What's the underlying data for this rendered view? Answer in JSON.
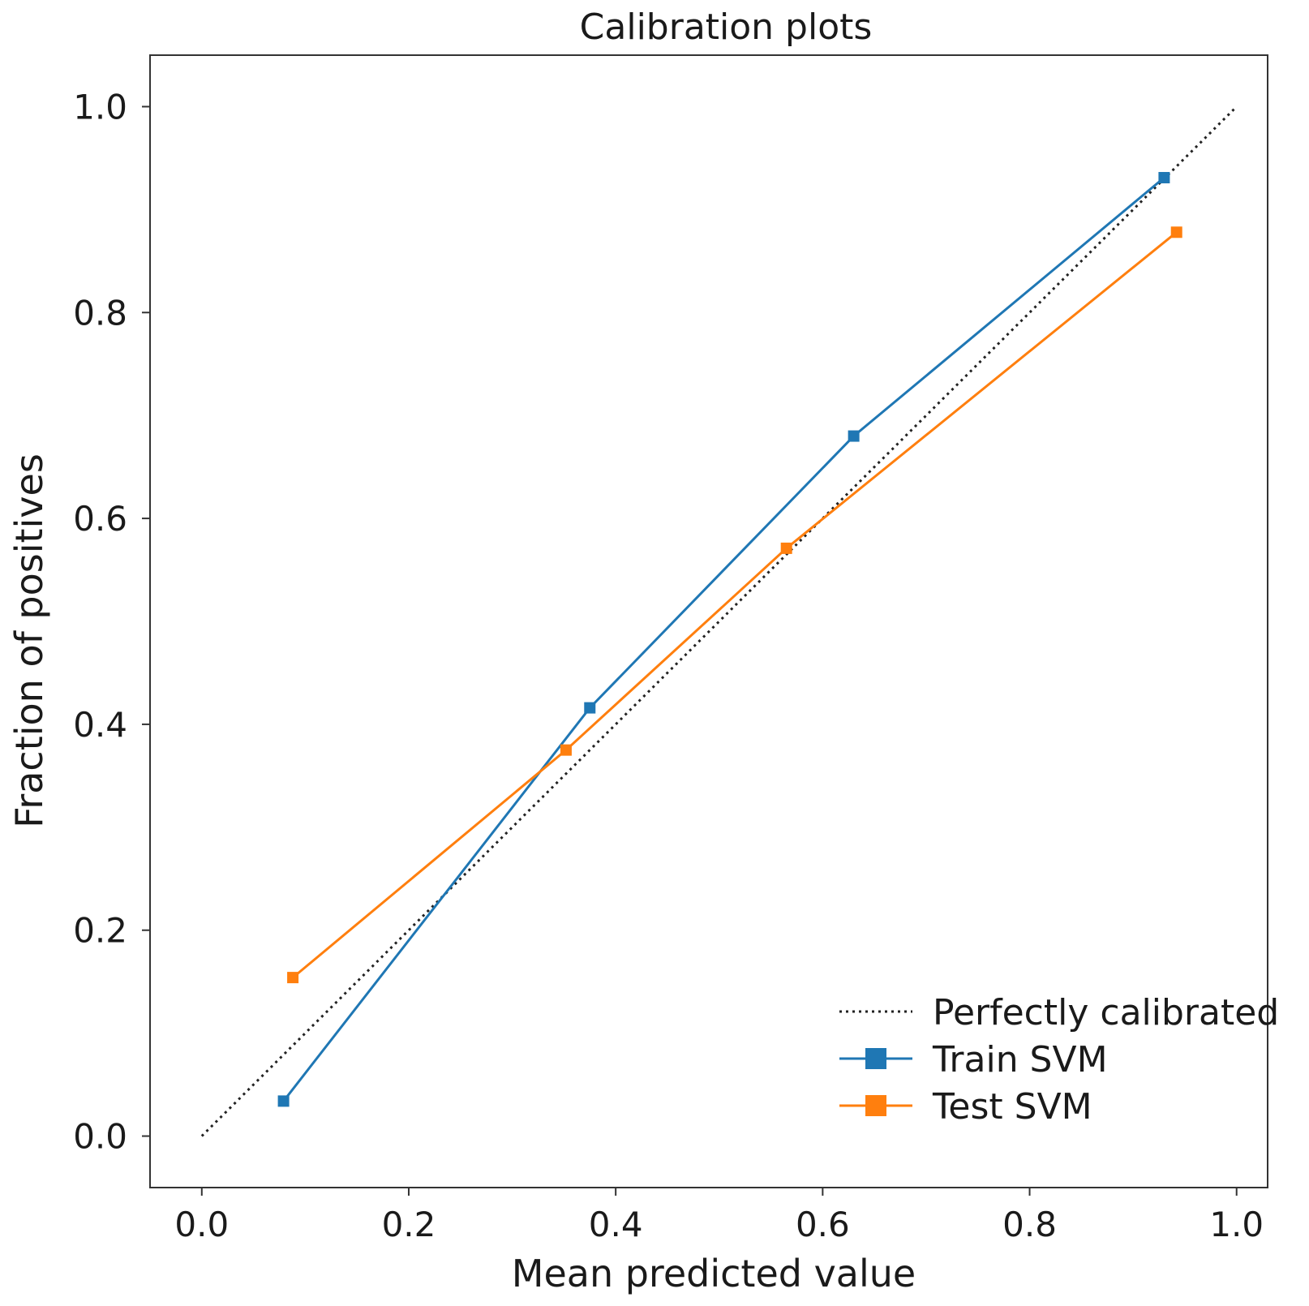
{
  "chart_data": {
    "type": "line",
    "title": "Calibration plots",
    "xlabel": "Mean predicted value",
    "ylabel": "Fraction of positives",
    "xlim": [
      -0.05,
      1.03
    ],
    "ylim": [
      -0.05,
      1.05
    ],
    "xticks": [
      "0.0",
      "0.2",
      "0.4",
      "0.6",
      "0.8",
      "1.0"
    ],
    "yticks": [
      "0.0",
      "0.2",
      "0.4",
      "0.6",
      "0.8",
      "1.0"
    ],
    "grid": false,
    "legend_position": "bottom-right",
    "series": [
      {
        "name": "Perfectly calibrated",
        "style": "dotted",
        "marker": "none",
        "color": "#222222",
        "x": [
          0.0,
          1.0
        ],
        "y": [
          0.0,
          1.0
        ]
      },
      {
        "name": "Train SVM",
        "style": "solid",
        "marker": "square",
        "color": "#1f77b4",
        "x": [
          0.079,
          0.375,
          0.63,
          0.93
        ],
        "y": [
          0.034,
          0.416,
          0.68,
          0.931
        ]
      },
      {
        "name": "Test SVM",
        "style": "solid",
        "marker": "square",
        "color": "#ff7f0e",
        "x": [
          0.088,
          0.352,
          0.565,
          0.942
        ],
        "y": [
          0.154,
          0.375,
          0.571,
          0.878
        ]
      }
    ]
  }
}
